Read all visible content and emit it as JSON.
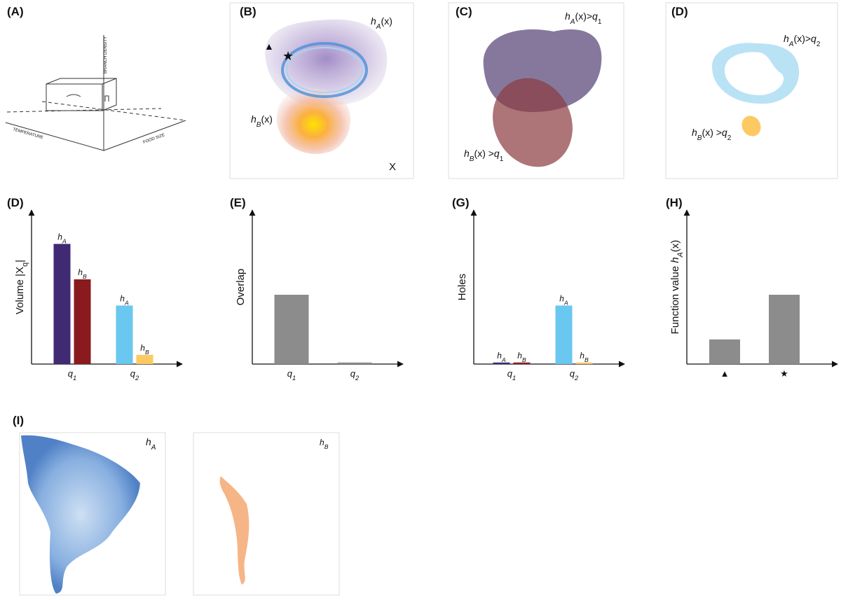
{
  "panel_labels": [
    "(A)",
    "(B)",
    "(C)",
    "(D)",
    "(D)",
    "(E)",
    "(G)",
    "(H)",
    "(I)"
  ],
  "panel_a": {
    "axes": [
      "BRANCH DENSITY",
      "TEMPERATURE",
      "FOOD SIZE"
    ]
  },
  "panel_b": {
    "h_a": [
      {
        "t": "h",
        "it": true
      },
      {
        "t": "A",
        "sub": true,
        "it": true
      },
      {
        "t": "(x)"
      }
    ],
    "h_b": [
      {
        "t": "h",
        "it": true
      },
      {
        "t": "B",
        "sub": true,
        "it": true
      },
      {
        "t": "(x)"
      }
    ],
    "space": "X",
    "triangle": "▲",
    "star": "★"
  },
  "panel_c": {
    "h_a": [
      {
        "t": "h",
        "it": true
      },
      {
        "t": "A",
        "sub": true,
        "it": true
      },
      {
        "t": "(x)>"
      },
      {
        "t": "q",
        "it": true
      },
      {
        "t": "1",
        "sub": true
      }
    ],
    "h_b": [
      {
        "t": "h",
        "it": true
      },
      {
        "t": "B",
        "sub": true,
        "it": true
      },
      {
        "t": "(x) >"
      },
      {
        "t": "q",
        "it": true
      },
      {
        "t": "1",
        "sub": true
      }
    ]
  },
  "panel_d_top": {
    "h_a": [
      {
        "t": "h",
        "it": true
      },
      {
        "t": "A",
        "sub": true,
        "it": true
      },
      {
        "t": "(x)>"
      },
      {
        "t": "q",
        "it": true
      },
      {
        "t": "2",
        "sub": true
      }
    ],
    "h_b": [
      {
        "t": "h",
        "it": true
      },
      {
        "t": "B",
        "sub": true,
        "it": true
      },
      {
        "t": "(x) >"
      },
      {
        "t": "q",
        "it": true
      },
      {
        "t": "2",
        "sub": true
      }
    ]
  },
  "panel_i": {
    "h_a": [
      {
        "t": "h",
        "it": true
      },
      {
        "t": "A",
        "sub": true,
        "it": true
      }
    ],
    "h_b": [
      {
        "t": "h",
        "it": true
      },
      {
        "t": "B",
        "sub": true,
        "it": true
      }
    ]
  },
  "chart_data": [
    {
      "type": "bar",
      "y_label": [
        {
          "t": "Volume |X"
        },
        {
          "t": "q",
          "sub": true
        },
        {
          "t": "|"
        }
      ],
      "categories": [
        [
          {
            "t": "q",
            "it": true
          },
          {
            "t": "1",
            "sub": true,
            "it": true
          }
        ],
        [
          {
            "t": "q",
            "it": true
          },
          {
            "t": "2",
            "sub": true,
            "it": true
          }
        ]
      ],
      "ylim": [
        0,
        100
      ],
      "bar_labels": true,
      "series": [
        {
          "name": [
            {
              "t": "h",
              "it": true
            },
            {
              "t": "A",
              "sub": true,
              "it": true
            }
          ],
          "colors": [
            "#3f2a73",
            "#6ac7f0"
          ],
          "values": [
            78,
            38
          ]
        },
        {
          "name": [
            {
              "t": "h",
              "it": true
            },
            {
              "t": "B",
              "sub": true,
              "it": true
            }
          ],
          "colors": [
            "#8a1a1e",
            "#fcc962"
          ],
          "values": [
            55,
            6
          ]
        }
      ]
    },
    {
      "type": "bar",
      "y_label": [
        {
          "t": "Overlap"
        }
      ],
      "categories": [
        [
          {
            "t": "q",
            "it": true
          },
          {
            "t": "1",
            "sub": true,
            "it": true
          }
        ],
        [
          {
            "t": "q",
            "it": true
          },
          {
            "t": "2",
            "sub": true,
            "it": true
          }
        ]
      ],
      "ylim": [
        0,
        100
      ],
      "bar_labels": false,
      "series": [
        {
          "colors": [
            "#8c8c8c",
            "#8c8c8c"
          ],
          "values": [
            45,
            1
          ]
        }
      ]
    },
    {
      "type": "bar",
      "y_label": [
        {
          "t": "Holes"
        }
      ],
      "categories": [
        [
          {
            "t": "q",
            "it": true
          },
          {
            "t": "1",
            "sub": true,
            "it": true
          }
        ],
        [
          {
            "t": "q",
            "it": true
          },
          {
            "t": "2",
            "sub": true,
            "it": true
          }
        ]
      ],
      "ylim": [
        0,
        100
      ],
      "bar_labels": true,
      "series": [
        {
          "name": [
            {
              "t": "h",
              "it": true
            },
            {
              "t": "A",
              "sub": true,
              "it": true
            }
          ],
          "colors": [
            "#3f2a73",
            "#6ac7f0"
          ],
          "values": [
            1,
            38
          ]
        },
        {
          "name": [
            {
              "t": "h",
              "it": true
            },
            {
              "t": "B",
              "sub": true,
              "it": true
            }
          ],
          "colors": [
            "#8a1a1e",
            "#fcc962"
          ],
          "values": [
            1,
            1
          ]
        }
      ]
    },
    {
      "type": "bar",
      "y_label": [
        {
          "t": "Function value "
        },
        {
          "t": "h",
          "it": true
        },
        {
          "t": "A",
          "sub": true,
          "it": true
        },
        {
          "t": "(x)"
        }
      ],
      "categories": [
        [
          {
            "t": "▲"
          }
        ],
        [
          {
            "t": "★"
          }
        ]
      ],
      "ylim": [
        0,
        100
      ],
      "bar_labels": false,
      "series": [
        {
          "colors": [
            "#8c8c8c",
            "#8c8c8c"
          ],
          "values": [
            16,
            45
          ]
        }
      ]
    }
  ]
}
